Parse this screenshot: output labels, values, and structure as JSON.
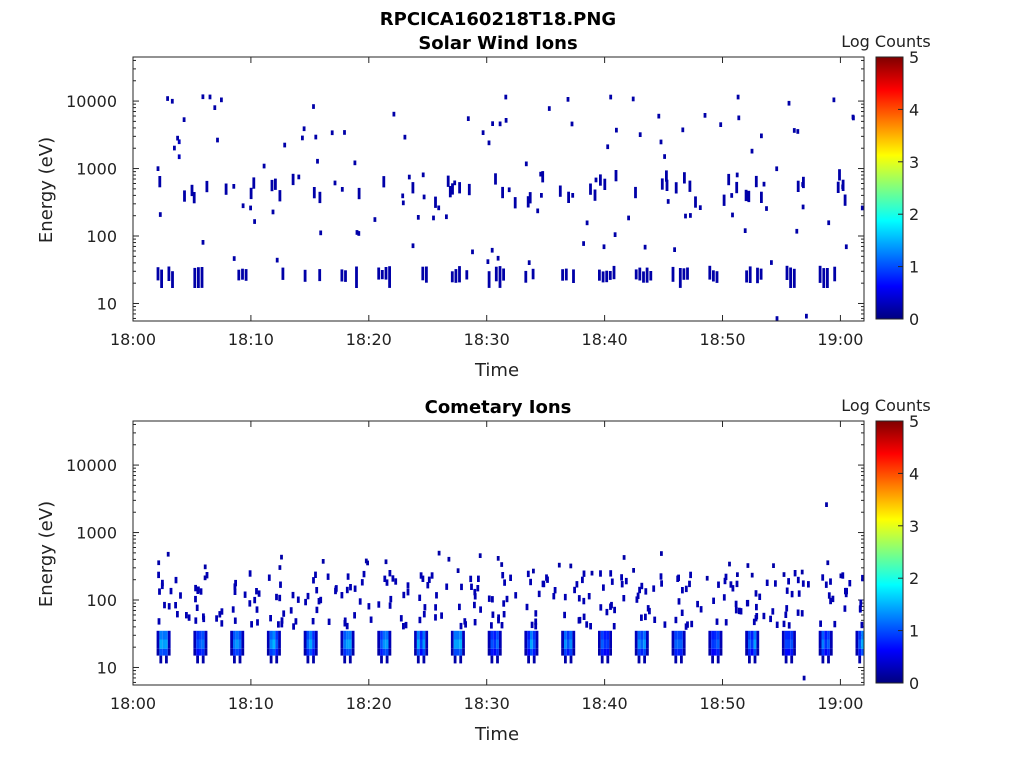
{
  "figure": {
    "title": "RPCICA160218T18.PNG"
  },
  "chart_data": [
    {
      "type": "heatmap",
      "title": "Solar Wind Ions",
      "xlabel": "Time",
      "ylabel": "Energy (eV)",
      "x_ticks": [
        "18:00",
        "18:10",
        "18:20",
        "18:30",
        "18:40",
        "18:50",
        "19:00"
      ],
      "xlim_minutes": [
        0,
        62
      ],
      "y_scale": "log",
      "y_ticks": [
        10,
        100,
        1000,
        10000
      ],
      "y_tick_labels": [
        "10",
        "100",
        "1000",
        "10000"
      ],
      "ylim": [
        5.5,
        45000
      ],
      "colorbar": {
        "label": "Log Counts",
        "min": 0,
        "max": 5,
        "ticks": [
          "0",
          "1",
          "2",
          "3",
          "4",
          "5"
        ],
        "colormap": "jet"
      },
      "pattern": {
        "sweep_start_min": 2.0,
        "sweep_period_min": 3.12,
        "low_band_eV": [
          20,
          33
        ],
        "low_band_level": 0.2,
        "mid_band_eV": [
          300,
          800
        ],
        "scatter_max_eV": 12000,
        "scatter_level": 0.2
      },
      "notable_points": [
        {
          "t_min": 31.5,
          "energy_eV": 11500,
          "level": 0.2
        },
        {
          "t_min": 40.4,
          "energy_eV": 11500,
          "level": 0.2
        },
        {
          "t_min": 51.2,
          "energy_eV": 11500,
          "level": 0.2
        },
        {
          "t_min": 2.0,
          "energy_eV": 1000,
          "level": 0.2
        },
        {
          "t_min": 3.8,
          "energy_eV": 2500,
          "level": 0.3
        },
        {
          "t_min": 3.8,
          "energy_eV": 1500,
          "level": 0.3
        },
        {
          "t_min": 57.0,
          "energy_eV": 6.5,
          "level": 0.2
        },
        {
          "t_min": 54.5,
          "energy_eV": 6.0,
          "level": 0.2
        }
      ]
    },
    {
      "type": "heatmap",
      "title": "Cometary Ions",
      "xlabel": "Time",
      "ylabel": "Energy (eV)",
      "x_ticks": [
        "18:00",
        "18:10",
        "18:20",
        "18:30",
        "18:40",
        "18:50",
        "19:00"
      ],
      "xlim_minutes": [
        0,
        62
      ],
      "y_scale": "log",
      "y_ticks": [
        10,
        100,
        1000,
        10000
      ],
      "y_tick_labels": [
        "10",
        "100",
        "1000",
        "10000"
      ],
      "ylim": [
        5.5,
        45000
      ],
      "colorbar": {
        "label": "Log Counts",
        "min": 0,
        "max": 5,
        "ticks": [
          "0",
          "1",
          "2",
          "3",
          "4",
          "5"
        ],
        "colormap": "jet"
      },
      "pattern": {
        "sweep_start_min": 2.0,
        "sweep_period_min": 3.12,
        "low_band_eV": [
          12,
          35
        ],
        "low_band_peak_level": 1.4,
        "mid_band_eV": [
          40,
          250
        ],
        "mid_band_level": 0.25,
        "sparse_max_eV": 500
      },
      "notable_points": [
        {
          "t_min": 58.7,
          "energy_eV": 2600,
          "level": 0.2
        },
        {
          "t_min": 56.8,
          "energy_eV": 7.0,
          "level": 0.2
        }
      ]
    }
  ]
}
